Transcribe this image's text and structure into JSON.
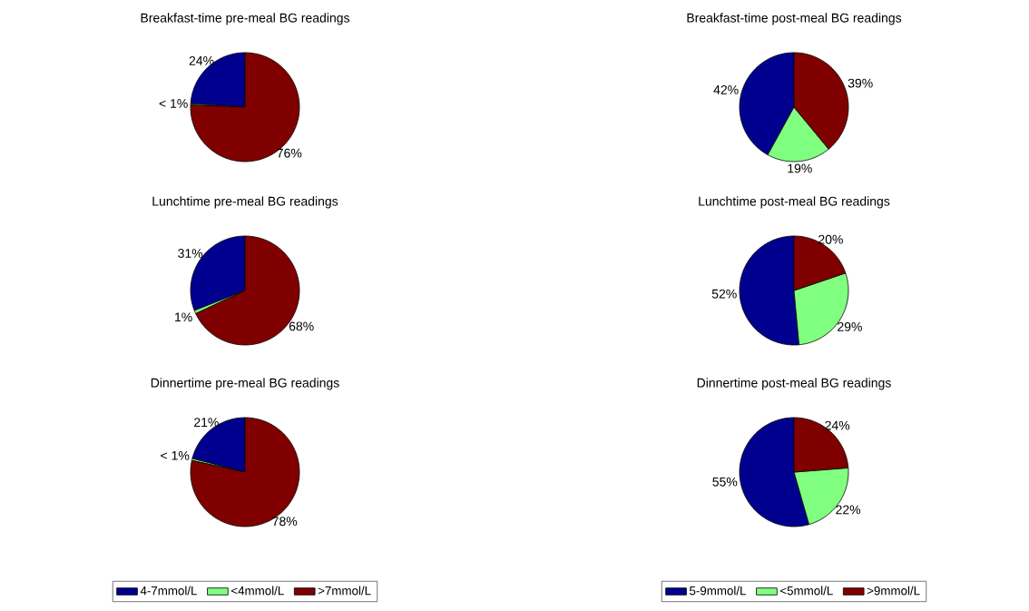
{
  "chart_data": [
    {
      "type": "pie",
      "title": "Breakfast-time pre-meal BG readings",
      "categories": [
        null,
        null,
        null
      ],
      "values": [
        24,
        0.4,
        75.6
      ],
      "value_labels": [
        "24%",
        "< 1%",
        "76%"
      ],
      "colors": [
        "#00008f",
        "#80ff80",
        "#800000"
      ]
    },
    {
      "type": "pie",
      "title": "Breakfast-time post-meal BG readings",
      "categories": [
        null,
        null,
        null
      ],
      "values": [
        42,
        19,
        39
      ],
      "value_labels": [
        "42%",
        "19%",
        "39%"
      ],
      "colors": [
        "#00008f",
        "#80ff80",
        "#800000"
      ]
    },
    {
      "type": "pie",
      "title": "Lunchtime pre-meal BG readings",
      "categories": [
        null,
        null,
        null
      ],
      "values": [
        31,
        1,
        68
      ],
      "value_labels": [
        "31%",
        "1%",
        "68%"
      ],
      "colors": [
        "#00008f",
        "#80ff80",
        "#800000"
      ]
    },
    {
      "type": "pie",
      "title": "Lunchtime post-meal BG readings",
      "categories": [
        null,
        null,
        null
      ],
      "values": [
        52,
        29,
        20
      ],
      "value_labels": [
        "52%",
        "29%",
        "20%"
      ],
      "colors": [
        "#00008f",
        "#80ff80",
        "#800000"
      ]
    },
    {
      "type": "pie",
      "title": "Dinnertime pre-meal BG readings",
      "categories": [
        "4-7mmol/L",
        "<4mmol/L",
        ">7mmol/L"
      ],
      "values": [
        21,
        0.6,
        78.4
      ],
      "value_labels": [
        "21%",
        "< 1%",
        "78%"
      ],
      "colors": [
        "#00008f",
        "#80ff80",
        "#800000"
      ],
      "legend": "bottom"
    },
    {
      "type": "pie",
      "title": "Dinnertime post-meal BG readings",
      "categories": [
        "5-9mmol/L",
        "<5mmol/L",
        ">9mmol/L"
      ],
      "values": [
        55,
        22,
        24
      ],
      "value_labels": [
        "55%",
        "22%",
        "24%"
      ],
      "colors": [
        "#00008f",
        "#80ff80",
        "#800000"
      ],
      "legend": "bottom"
    }
  ]
}
